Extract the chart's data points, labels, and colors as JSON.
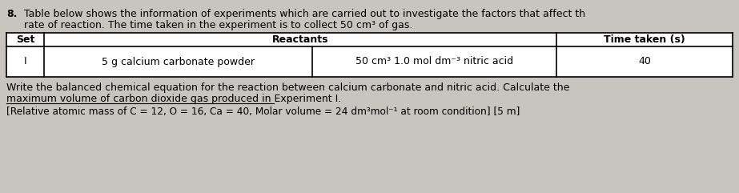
{
  "background_color": "#c8c4c0",
  "question_number": "8.",
  "intro_line1": "Table below shows the information of experiments which are carried out to investigate the factors that affect th",
  "intro_line2": "rate of reaction. The time taken in the experiment is to collect 50 cm³ of gas.",
  "table_headers": [
    "Set",
    "Reactants",
    "Time taken (s)"
  ],
  "table_row_set": "I",
  "table_row_react1": "5 g calcium carbonate powder",
  "table_row_react2": "50 cm³ 1.0 mol dm⁻³ nitric acid",
  "table_row_time": "40",
  "question_line1": "Write the balanced chemical equation for the reaction between calcium carbonate and nitric acid. Calculate the",
  "question_line2": "maximum volume of carbon dioxide gas produced in Experiment I.",
  "footnote": "[Relative atomic mass of C = 12, O = 16, Ca = 40, Molar volume = 24 dm³mol⁻¹ at room condition] [5 m]",
  "font_size": 9.0
}
